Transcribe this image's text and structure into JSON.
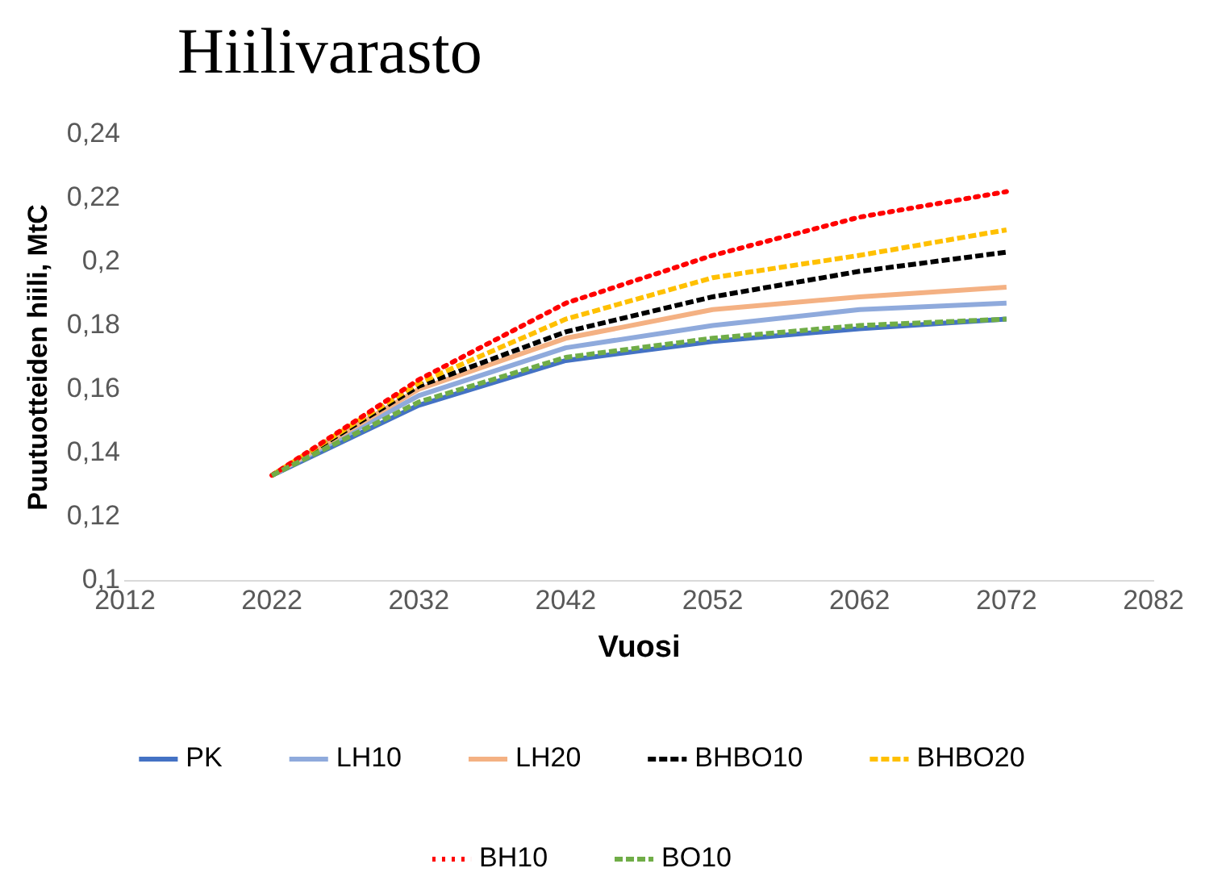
{
  "chart_data": {
    "type": "line",
    "title": "Hiilivarasto",
    "xlabel": "Vuosi",
    "ylabel": "Puutuotteiden hiili, MtC",
    "x": [
      2022,
      2032,
      2042,
      2052,
      2062,
      2072
    ],
    "xlim": [
      2012,
      2082
    ],
    "xticks": [
      2012,
      2022,
      2032,
      2042,
      2052,
      2062,
      2072,
      2082
    ],
    "ylim": [
      0.1,
      0.24
    ],
    "yticks": [
      {
        "value": 0.1,
        "label": "0,1"
      },
      {
        "value": 0.12,
        "label": "0,12"
      },
      {
        "value": 0.14,
        "label": "0,14"
      },
      {
        "value": 0.16,
        "label": "0,16"
      },
      {
        "value": 0.18,
        "label": "0,18"
      },
      {
        "value": 0.2,
        "label": "0,2"
      },
      {
        "value": 0.22,
        "label": "0,22"
      },
      {
        "value": 0.24,
        "label": "0,24"
      }
    ],
    "grid": false,
    "legend": "bottom",
    "marker": "none",
    "series": [
      {
        "name": "PK",
        "color": "#4472c4",
        "line_style": "solid",
        "values": [
          0.133,
          0.155,
          0.169,
          0.175,
          0.179,
          0.182
        ]
      },
      {
        "name": "LH10",
        "color": "#8faadc",
        "line_style": "solid",
        "values": [
          0.133,
          0.158,
          0.173,
          0.18,
          0.185,
          0.187
        ]
      },
      {
        "name": "LH20",
        "color": "#f4b183",
        "line_style": "solid",
        "values": [
          0.133,
          0.16,
          0.176,
          0.185,
          0.189,
          0.192
        ]
      },
      {
        "name": "BHBO10",
        "color": "#000000",
        "line_style": "dashed",
        "values": [
          0.133,
          0.161,
          0.178,
          0.189,
          0.197,
          0.203
        ]
      },
      {
        "name": "BHBO20",
        "color": "#ffc000",
        "line_style": "dashed",
        "values": [
          0.133,
          0.162,
          0.182,
          0.195,
          0.202,
          0.21
        ]
      },
      {
        "name": "BH10",
        "color": "#ff0000",
        "line_style": "dotted",
        "values": [
          0.133,
          0.163,
          0.187,
          0.202,
          0.214,
          0.222
        ]
      },
      {
        "name": "BO10",
        "color": "#70ad47",
        "line_style": "dashed",
        "values": [
          0.133,
          0.156,
          0.17,
          0.176,
          0.18,
          0.182
        ]
      }
    ]
  }
}
